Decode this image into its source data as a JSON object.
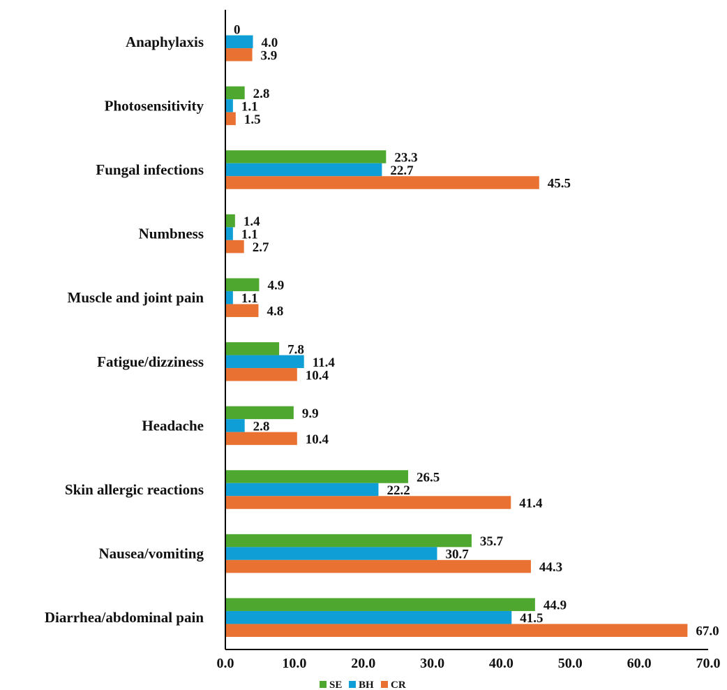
{
  "chart_data": {
    "type": "bar",
    "orientation": "horizontal",
    "categories": [
      "Anaphylaxis",
      "Photosensitivity",
      "Fungal infections",
      "Numbness",
      "Muscle and joint pain",
      "Fatigue/dizziness",
      "Headache",
      "Skin allergic reactions",
      "Nausea/vomiting",
      "Diarrhea/abdominal pain"
    ],
    "series": [
      {
        "name": "SE",
        "color": "#4ea72e",
        "values": [
          0,
          2.8,
          23.3,
          1.4,
          4.9,
          7.8,
          9.9,
          26.5,
          35.7,
          44.9
        ],
        "labels": [
          "0",
          "2.8",
          "23.3",
          "1.4",
          "4.9",
          "7.8",
          "9.9",
          "26.5",
          "35.7",
          "44.9"
        ]
      },
      {
        "name": "BH",
        "color": "#0f9ed5",
        "values": [
          4.0,
          1.1,
          22.7,
          1.1,
          1.1,
          11.4,
          2.8,
          22.2,
          30.7,
          41.5
        ],
        "labels": [
          "4.0",
          "1.1",
          "22.7",
          "1.1",
          "1.1",
          "11.4",
          "2.8",
          "22.2",
          "30.7",
          "41.5"
        ]
      },
      {
        "name": "CR",
        "color": "#e97132",
        "values": [
          3.9,
          1.5,
          45.5,
          2.7,
          4.8,
          10.4,
          10.4,
          41.4,
          44.3,
          67.0
        ],
        "labels": [
          "3.9",
          "1.5",
          "45.5",
          "2.7",
          "4.8",
          "10.4",
          "10.4",
          "41.4",
          "44.3",
          "67.0"
        ]
      }
    ],
    "x_ticks": [
      "0.0",
      "10.0",
      "20.0",
      "30.0",
      "40.0",
      "50.0",
      "60.0",
      "70.0"
    ],
    "xlim": [
      0,
      70
    ],
    "title": "",
    "xlabel": "",
    "ylabel": "",
    "grid": false,
    "legend_position": "bottom"
  }
}
